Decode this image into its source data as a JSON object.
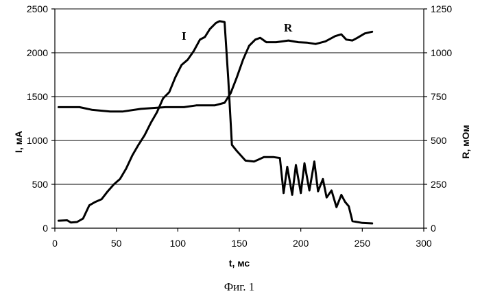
{
  "chart_data": {
    "type": "line",
    "caption": "Фиг. 1",
    "xlabel": "t, мс",
    "ylabel_left": "I, мА",
    "ylabel_right": "R, мОм",
    "xlim": [
      0,
      300
    ],
    "ylim_left": [
      0,
      2500
    ],
    "ylim_right": [
      0,
      1250
    ],
    "x_ticks": [
      0,
      50,
      100,
      150,
      200,
      250,
      300
    ],
    "y_ticks_left": [
      0,
      500,
      1000,
      1500,
      2000,
      2500
    ],
    "y_ticks_right": [
      0,
      250,
      500,
      750,
      1000,
      1250
    ],
    "grid": "horizontal",
    "series": [
      {
        "name": "I",
        "axis": "left",
        "points": [
          [
            3,
            85
          ],
          [
            10,
            90
          ],
          [
            13,
            65
          ],
          [
            18,
            70
          ],
          [
            23,
            110
          ],
          [
            28,
            260
          ],
          [
            33,
            300
          ],
          [
            38,
            330
          ],
          [
            43,
            420
          ],
          [
            48,
            500
          ],
          [
            53,
            560
          ],
          [
            58,
            680
          ],
          [
            63,
            830
          ],
          [
            68,
            950
          ],
          [
            73,
            1060
          ],
          [
            78,
            1200
          ],
          [
            83,
            1320
          ],
          [
            88,
            1480
          ],
          [
            93,
            1550
          ],
          [
            98,
            1720
          ],
          [
            103,
            1860
          ],
          [
            108,
            1920
          ],
          [
            113,
            2020
          ],
          [
            118,
            2150
          ],
          [
            122,
            2180
          ],
          [
            126,
            2270
          ],
          [
            131,
            2340
          ],
          [
            134,
            2360
          ],
          [
            138,
            2350
          ],
          [
            141,
            1700
          ],
          [
            144,
            950
          ],
          [
            148,
            880
          ],
          [
            155,
            770
          ],
          [
            162,
            760
          ],
          [
            170,
            810
          ],
          [
            178,
            810
          ],
          [
            183,
            800
          ],
          [
            186,
            400
          ],
          [
            189,
            700
          ],
          [
            193,
            380
          ],
          [
            196,
            720
          ],
          [
            200,
            400
          ],
          [
            203,
            740
          ],
          [
            207,
            430
          ],
          [
            211,
            760
          ],
          [
            214,
            420
          ],
          [
            218,
            560
          ],
          [
            221,
            350
          ],
          [
            225,
            430
          ],
          [
            229,
            240
          ],
          [
            233,
            380
          ],
          [
            236,
            300
          ],
          [
            239,
            250
          ],
          [
            242,
            80
          ],
          [
            250,
            60
          ],
          [
            258,
            55
          ]
        ]
      },
      {
        "name": "R",
        "axis": "right",
        "points": [
          [
            3,
            690
          ],
          [
            20,
            690
          ],
          [
            30,
            675
          ],
          [
            45,
            665
          ],
          [
            55,
            665
          ],
          [
            70,
            680
          ],
          [
            90,
            690
          ],
          [
            105,
            690
          ],
          [
            115,
            700
          ],
          [
            130,
            700
          ],
          [
            138,
            715
          ],
          [
            143,
            770
          ],
          [
            148,
            860
          ],
          [
            153,
            960
          ],
          [
            158,
            1040
          ],
          [
            163,
            1075
          ],
          [
            167,
            1085
          ],
          [
            172,
            1060
          ],
          [
            180,
            1060
          ],
          [
            190,
            1070
          ],
          [
            198,
            1060
          ],
          [
            205,
            1058
          ],
          [
            212,
            1050
          ],
          [
            220,
            1065
          ],
          [
            228,
            1095
          ],
          [
            233,
            1105
          ],
          [
            237,
            1075
          ],
          [
            242,
            1070
          ],
          [
            246,
            1085
          ],
          [
            252,
            1110
          ],
          [
            258,
            1120
          ]
        ]
      }
    ]
  }
}
